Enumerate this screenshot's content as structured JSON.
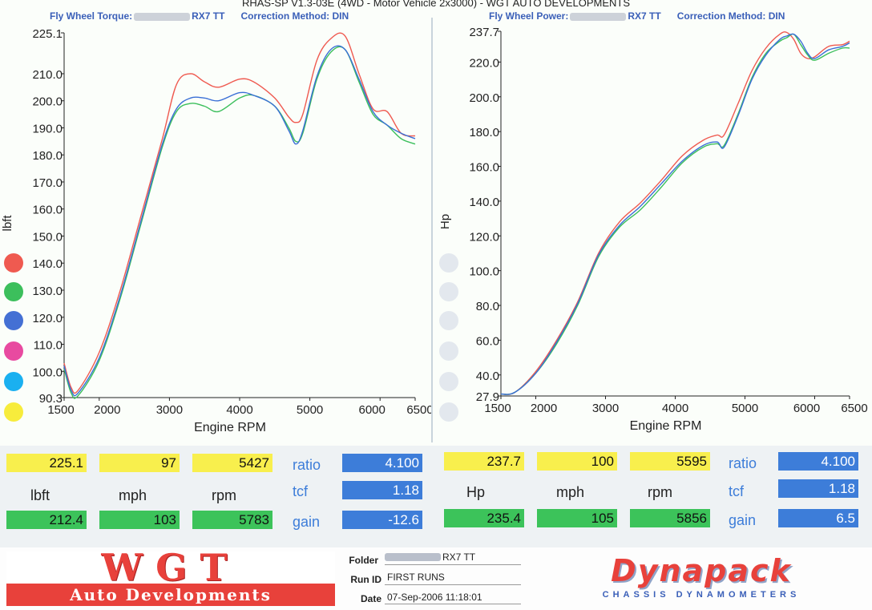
{
  "page_title": "RHAS-SP V1.3-03E  (4WD - Motor Vehicle 2x3000) - WGT AUTO DEVELOPMENTS",
  "chart_torque_header": {
    "label": "Fly Wheel Torque:",
    "vehicle": "RX7 TT",
    "correction": "Correction Method: DIN"
  },
  "chart_power_header": {
    "label": "Fly Wheel Power:",
    "vehicle": "RX7 TT",
    "correction": "Correction Method: DIN"
  },
  "series_colors": [
    "#ef5a50",
    "#3cbf5c",
    "#3a6fd6"
  ],
  "legend_dot_colors": [
    "#ef5a50",
    "#3cbf5c",
    "#4470d4",
    "#e84aa0",
    "#1ab0f0",
    "#f7ec3c"
  ],
  "chart_data": [
    {
      "type": "line",
      "xlabel": "Engine RPM",
      "ylabel": "lbft",
      "xlim": [
        1500,
        6500
      ],
      "ylim": [
        90.3,
        225.1
      ],
      "xticks": [
        "1500",
        "2000",
        "3000",
        "4000",
        "5000",
        "6000",
        "6500"
      ],
      "xtick_values": [
        1500,
        2000,
        3000,
        4000,
        5000,
        6000,
        6500
      ],
      "yticks": [
        "90.3",
        "100.0",
        "110.0",
        "120.0",
        "130.0",
        "140.0",
        "150.0",
        "160.0",
        "170.0",
        "180.0",
        "190.0",
        "200.0",
        "210.0",
        "225.1"
      ],
      "ytick_values": [
        90.3,
        100,
        110,
        120,
        130,
        140,
        150,
        160,
        170,
        180,
        190,
        200,
        210,
        225.1
      ],
      "grid": false,
      "x": [
        1500,
        1600,
        1700,
        2000,
        2300,
        2600,
        2900,
        3100,
        3300,
        3500,
        3700,
        4000,
        4200,
        4500,
        4700,
        4800,
        4900,
        5100,
        5300,
        5500,
        5700,
        5900,
        6100,
        6300,
        6500
      ],
      "series": [
        {
          "values": [
            103,
            94,
            93,
            107,
            130,
            158,
            186,
            206,
            210,
            207,
            205,
            208,
            207,
            201,
            194,
            192,
            195,
            215,
            223,
            224,
            210,
            197,
            196,
            188,
            187
          ]
        },
        {
          "values": [
            101,
            92,
            91,
            104,
            127,
            155,
            183,
            196,
            199,
            198,
            196,
            201,
            202,
            198,
            190,
            185,
            188,
            208,
            218,
            219,
            207,
            195,
            191,
            186,
            184
          ]
        },
        {
          "values": [
            102,
            93,
            92,
            105,
            128,
            156,
            184,
            197,
            201,
            201,
            200,
            203,
            202,
            198,
            189,
            184,
            189,
            209,
            219,
            219,
            208,
            196,
            191,
            188,
            186
          ]
        }
      ]
    },
    {
      "type": "line",
      "xlabel": "Engine RPM",
      "ylabel": "Hp",
      "xlim": [
        1500,
        6500
      ],
      "ylim": [
        27.9,
        237.7
      ],
      "xticks": [
        "1500",
        "2000",
        "3000",
        "4000",
        "5000",
        "6000",
        "6500"
      ],
      "xtick_values": [
        1500,
        2000,
        3000,
        4000,
        5000,
        6000,
        6500
      ],
      "yticks": [
        "27.9",
        "40.0",
        "60.0",
        "80.0",
        "100.0",
        "120.0",
        "140.0",
        "160.0",
        "180.0",
        "200.0",
        "220.0",
        "237.7"
      ],
      "ytick_values": [
        27.9,
        40,
        60,
        80,
        100,
        120,
        140,
        160,
        180,
        200,
        220,
        237.7
      ],
      "grid": false,
      "x": [
        1500,
        1700,
        2000,
        2300,
        2600,
        2900,
        3200,
        3500,
        3800,
        4100,
        4400,
        4600,
        4700,
        4900,
        5100,
        5300,
        5500,
        5600,
        5700,
        5800,
        5900,
        6000,
        6200,
        6400,
        6500
      ],
      "series": [
        {
          "values": [
            29,
            30,
            42,
            60,
            82,
            110,
            128,
            139,
            152,
            166,
            175,
            178,
            178,
            196,
            215,
            228,
            236,
            237,
            233,
            225,
            222,
            223,
            229,
            230,
            232
          ]
        },
        {
          "values": [
            29,
            30,
            41,
            58,
            80,
            108,
            125,
            135,
            148,
            162,
            171,
            173,
            172,
            190,
            211,
            225,
            232,
            234,
            236,
            230,
            224,
            221,
            225,
            228,
            228
          ]
        },
        {
          "values": [
            29,
            30,
            41,
            59,
            81,
            109,
            126,
            137,
            150,
            163,
            172,
            174,
            171,
            189,
            210,
            224,
            233,
            235,
            236,
            232,
            225,
            222,
            227,
            229,
            231
          ]
        }
      ]
    }
  ],
  "stats_left": {
    "peak": [
      "225.1",
      "97",
      "5427"
    ],
    "units": [
      "lbft",
      "mph",
      "rpm"
    ],
    "second": [
      "212.4",
      "103",
      "5783"
    ],
    "params": [
      "ratio",
      "tcf",
      "gain"
    ],
    "param_values": [
      "4.100",
      "1.18",
      "-12.6"
    ]
  },
  "stats_right": {
    "peak": [
      "237.7",
      "100",
      "5595"
    ],
    "units": [
      "Hp",
      "mph",
      "rpm"
    ],
    "second": [
      "235.4",
      "105",
      "5856"
    ],
    "params": [
      "ratio",
      "tcf",
      "gain"
    ],
    "param_values": [
      "4.100",
      "1.18",
      "6.5"
    ]
  },
  "footer": {
    "logo_main": "WGT",
    "logo_sub": "Auto Developments",
    "folder_label": "Folder",
    "folder_value": "RX7 TT",
    "runid_label": "Run ID",
    "runid_value": "FIRST RUNS",
    "date_label": "Date",
    "date_value": "07-Sep-2006  11:18:01",
    "brand": "Dynapack",
    "brand_sub": "CHASSIS  DYNAMOMETERS"
  }
}
